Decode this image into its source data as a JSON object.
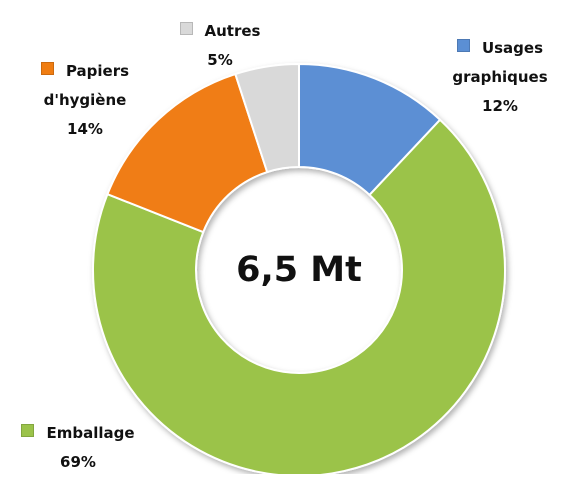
{
  "chart_data": {
    "type": "donut",
    "center_label": "6,5 Mt",
    "categories": [
      "Usages graphiques",
      "Emballage",
      "Papiers d'hygiène",
      "Autres"
    ],
    "values": [
      12,
      69,
      14,
      5
    ],
    "value_labels": [
      "12%",
      "69%",
      "14%",
      "5%"
    ],
    "colors": [
      "#5b8fd4",
      "#9bc34a",
      "#f07d12",
      "#d9d9d9"
    ]
  }
}
